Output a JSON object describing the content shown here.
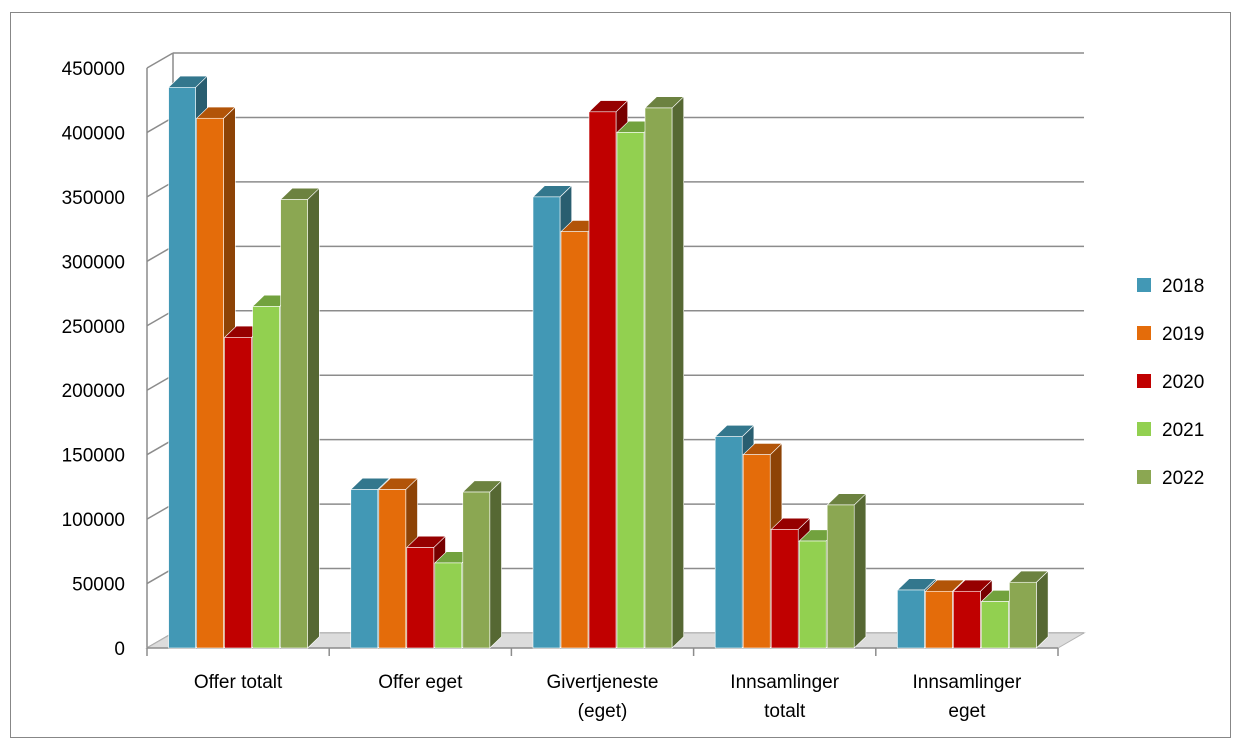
{
  "chart_data": {
    "type": "bar",
    "categories": [
      "Offer totalt",
      "Offer eget",
      "Givertjeneste (eget)",
      "Innsamlinger totalt",
      "Innsamlinger eget"
    ],
    "category_lines": [
      [
        "Offer totalt"
      ],
      [
        "Offer eget"
      ],
      [
        "Givertjeneste",
        "(eget)"
      ],
      [
        "Innsamlinger",
        "totalt"
      ],
      [
        "Innsamlinger",
        "eget"
      ]
    ],
    "series": [
      {
        "name": "2018",
        "color": "#4298B5",
        "values": [
          435000,
          123000,
          350000,
          164000,
          45000
        ]
      },
      {
        "name": "2019",
        "color": "#E46C0A",
        "values": [
          411000,
          123000,
          323000,
          150000,
          44000
        ]
      },
      {
        "name": "2020",
        "color": "#C00000",
        "values": [
          241000,
          78000,
          416000,
          92000,
          44000
        ]
      },
      {
        "name": "2021",
        "color": "#92D050",
        "values": [
          265000,
          66000,
          400000,
          83000,
          36000
        ]
      },
      {
        "name": "2022",
        "color": "#8BA752",
        "values": [
          348000,
          121000,
          419000,
          111000,
          51000
        ]
      }
    ],
    "y_ticks": [
      "0",
      "50000",
      "100000",
      "150000",
      "200000",
      "250000",
      "300000",
      "350000",
      "400000",
      "450000"
    ],
    "ylim": [
      0,
      450000
    ],
    "grid": true,
    "legend_position": "right",
    "title": "",
    "xlabel": "",
    "ylabel": ""
  }
}
